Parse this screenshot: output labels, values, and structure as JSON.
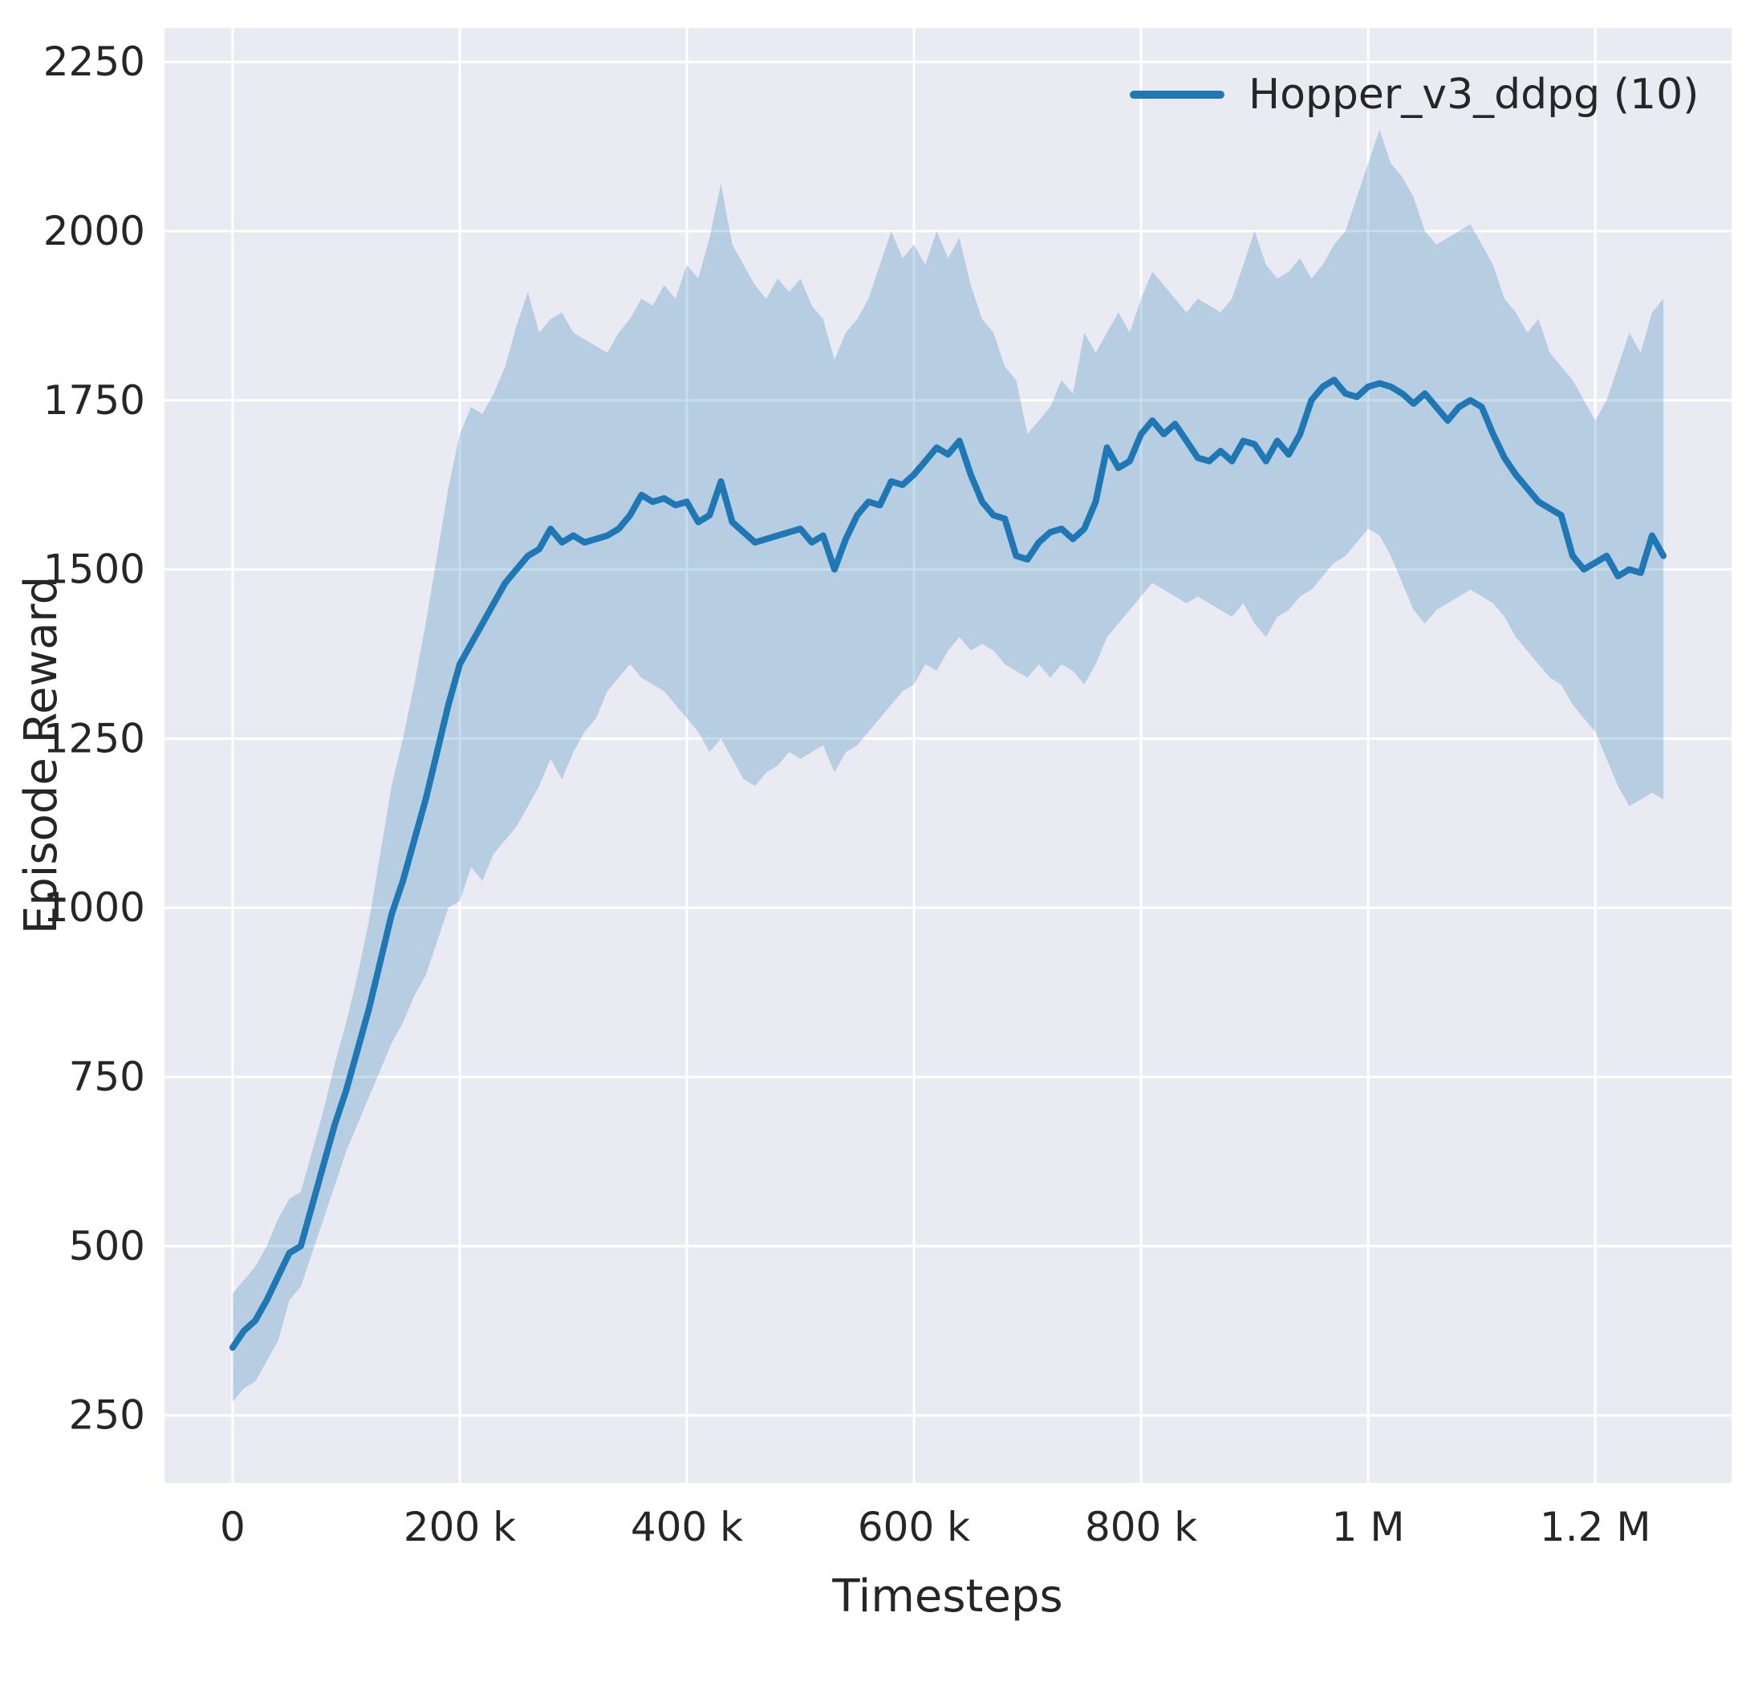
{
  "chart_data": {
    "type": "line",
    "title": "",
    "xlabel": "Timesteps",
    "ylabel": "Episode Reward",
    "grid": true,
    "legend_location": "upper right",
    "xlim": [
      -60000,
      1320000
    ],
    "ylim": [
      150,
      2300
    ],
    "x_ticks": [
      {
        "value": 0,
        "label": "0"
      },
      {
        "value": 200000,
        "label": "200 k"
      },
      {
        "value": 400000,
        "label": "400 k"
      },
      {
        "value": 600000,
        "label": "600 k"
      },
      {
        "value": 800000,
        "label": "800 k"
      },
      {
        "value": 1000000,
        "label": "1 M"
      },
      {
        "value": 1200000,
        "label": "1.2 M"
      }
    ],
    "y_ticks": [
      {
        "value": 250,
        "label": "250"
      },
      {
        "value": 500,
        "label": "500"
      },
      {
        "value": 750,
        "label": "750"
      },
      {
        "value": 1000,
        "label": "1000"
      },
      {
        "value": 1250,
        "label": "1250"
      },
      {
        "value": 1500,
        "label": "1500"
      },
      {
        "value": 1750,
        "label": "1750"
      },
      {
        "value": 2000,
        "label": "2000"
      },
      {
        "value": 2250,
        "label": "2250"
      }
    ],
    "styles": {
      "figure_bg": "#ffffff",
      "axes_bg": "#eaeaf2",
      "grid_color": "#ffffff",
      "text_color": "#262626"
    },
    "series": [
      {
        "name": "Hopper_v3_ddpg (10)",
        "color": "#1f77b4",
        "line_width": 8,
        "band_opacity": 0.25,
        "x": [
          0,
          10000,
          20000,
          30000,
          40000,
          50000,
          60000,
          70000,
          80000,
          90000,
          100000,
          110000,
          120000,
          130000,
          140000,
          150000,
          160000,
          170000,
          180000,
          190000,
          200000,
          210000,
          220000,
          230000,
          240000,
          250000,
          260000,
          270000,
          280000,
          290000,
          300000,
          310000,
          320000,
          330000,
          340000,
          350000,
          360000,
          370000,
          380000,
          390000,
          400000,
          410000,
          420000,
          430000,
          440000,
          450000,
          460000,
          470000,
          480000,
          490000,
          500000,
          510000,
          520000,
          530000,
          540000,
          550000,
          560000,
          570000,
          580000,
          590000,
          600000,
          610000,
          620000,
          630000,
          640000,
          650000,
          660000,
          670000,
          680000,
          690000,
          700000,
          710000,
          720000,
          730000,
          740000,
          750000,
          760000,
          770000,
          780000,
          790000,
          800000,
          810000,
          820000,
          830000,
          840000,
          850000,
          860000,
          870000,
          880000,
          890000,
          900000,
          910000,
          920000,
          930000,
          940000,
          950000,
          960000,
          970000,
          980000,
          990000,
          1000000,
          1010000,
          1020000,
          1030000,
          1040000,
          1050000,
          1060000,
          1070000,
          1080000,
          1090000,
          1100000,
          1110000,
          1120000,
          1130000,
          1140000,
          1150000,
          1160000,
          1170000,
          1180000,
          1190000,
          1200000,
          1210000,
          1220000,
          1230000,
          1240000,
          1250000,
          1260000
        ],
        "mean": [
          350,
          375,
          390,
          420,
          455,
          490,
          500,
          560,
          620,
          680,
          730,
          790,
          850,
          920,
          990,
          1040,
          1100,
          1160,
          1230,
          1300,
          1360,
          1390,
          1420,
          1450,
          1480,
          1500,
          1520,
          1530,
          1560,
          1540,
          1550,
          1540,
          1545,
          1550,
          1560,
          1580,
          1610,
          1600,
          1605,
          1595,
          1600,
          1570,
          1580,
          1630,
          1570,
          1555,
          1540,
          1545,
          1550,
          1555,
          1560,
          1540,
          1550,
          1500,
          1545,
          1580,
          1600,
          1595,
          1630,
          1625,
          1640,
          1660,
          1680,
          1670,
          1690,
          1640,
          1600,
          1580,
          1575,
          1520,
          1515,
          1540,
          1555,
          1560,
          1545,
          1560,
          1600,
          1680,
          1650,
          1660,
          1700,
          1720,
          1700,
          1715,
          1690,
          1665,
          1660,
          1675,
          1660,
          1690,
          1685,
          1660,
          1690,
          1670,
          1700,
          1750,
          1770,
          1780,
          1760,
          1755,
          1770,
          1775,
          1770,
          1760,
          1745,
          1760,
          1740,
          1720,
          1740,
          1750,
          1740,
          1700,
          1665,
          1640,
          1620,
          1600,
          1590,
          1580,
          1520,
          1500,
          1510,
          1520,
          1490,
          1500,
          1495,
          1550,
          1520
        ],
        "lower": [
          270,
          290,
          300,
          330,
          360,
          420,
          440,
          490,
          540,
          590,
          640,
          680,
          720,
          760,
          800,
          830,
          870,
          900,
          950,
          1000,
          1010,
          1060,
          1040,
          1080,
          1100,
          1120,
          1150,
          1180,
          1220,
          1190,
          1230,
          1260,
          1280,
          1320,
          1340,
          1360,
          1340,
          1330,
          1320,
          1300,
          1280,
          1260,
          1230,
          1250,
          1220,
          1190,
          1180,
          1200,
          1210,
          1230,
          1220,
          1230,
          1240,
          1200,
          1230,
          1240,
          1260,
          1280,
          1300,
          1320,
          1330,
          1360,
          1350,
          1380,
          1400,
          1380,
          1390,
          1380,
          1360,
          1350,
          1340,
          1360,
          1340,
          1360,
          1350,
          1330,
          1360,
          1400,
          1420,
          1440,
          1460,
          1480,
          1470,
          1460,
          1450,
          1460,
          1450,
          1440,
          1430,
          1450,
          1420,
          1400,
          1430,
          1440,
          1460,
          1470,
          1490,
          1510,
          1520,
          1540,
          1560,
          1550,
          1520,
          1480,
          1440,
          1420,
          1440,
          1450,
          1460,
          1470,
          1460,
          1450,
          1430,
          1400,
          1380,
          1360,
          1340,
          1330,
          1300,
          1280,
          1260,
          1220,
          1180,
          1150,
          1160,
          1170,
          1160
        ],
        "upper": [
          430,
          450,
          470,
          500,
          540,
          570,
          580,
          640,
          700,
          770,
          830,
          900,
          980,
          1080,
          1180,
          1250,
          1330,
          1420,
          1520,
          1620,
          1700,
          1740,
          1730,
          1760,
          1800,
          1860,
          1910,
          1850,
          1870,
          1880,
          1850,
          1840,
          1830,
          1820,
          1850,
          1870,
          1900,
          1890,
          1920,
          1900,
          1950,
          1930,
          1990,
          2070,
          1980,
          1950,
          1920,
          1900,
          1930,
          1910,
          1930,
          1890,
          1870,
          1810,
          1850,
          1870,
          1900,
          1950,
          2000,
          1960,
          1980,
          1950,
          2000,
          1960,
          1990,
          1920,
          1870,
          1850,
          1800,
          1780,
          1700,
          1720,
          1740,
          1780,
          1760,
          1850,
          1820,
          1850,
          1880,
          1850,
          1900,
          1940,
          1920,
          1900,
          1880,
          1900,
          1890,
          1880,
          1900,
          1950,
          2000,
          1950,
          1930,
          1940,
          1960,
          1930,
          1950,
          1980,
          2000,
          2050,
          2100,
          2150,
          2100,
          2080,
          2050,
          2000,
          1980,
          1990,
          2000,
          2010,
          1980,
          1950,
          1900,
          1880,
          1850,
          1870,
          1820,
          1800,
          1780,
          1750,
          1720,
          1750,
          1800,
          1850,
          1820,
          1880,
          1900
        ]
      }
    ]
  }
}
